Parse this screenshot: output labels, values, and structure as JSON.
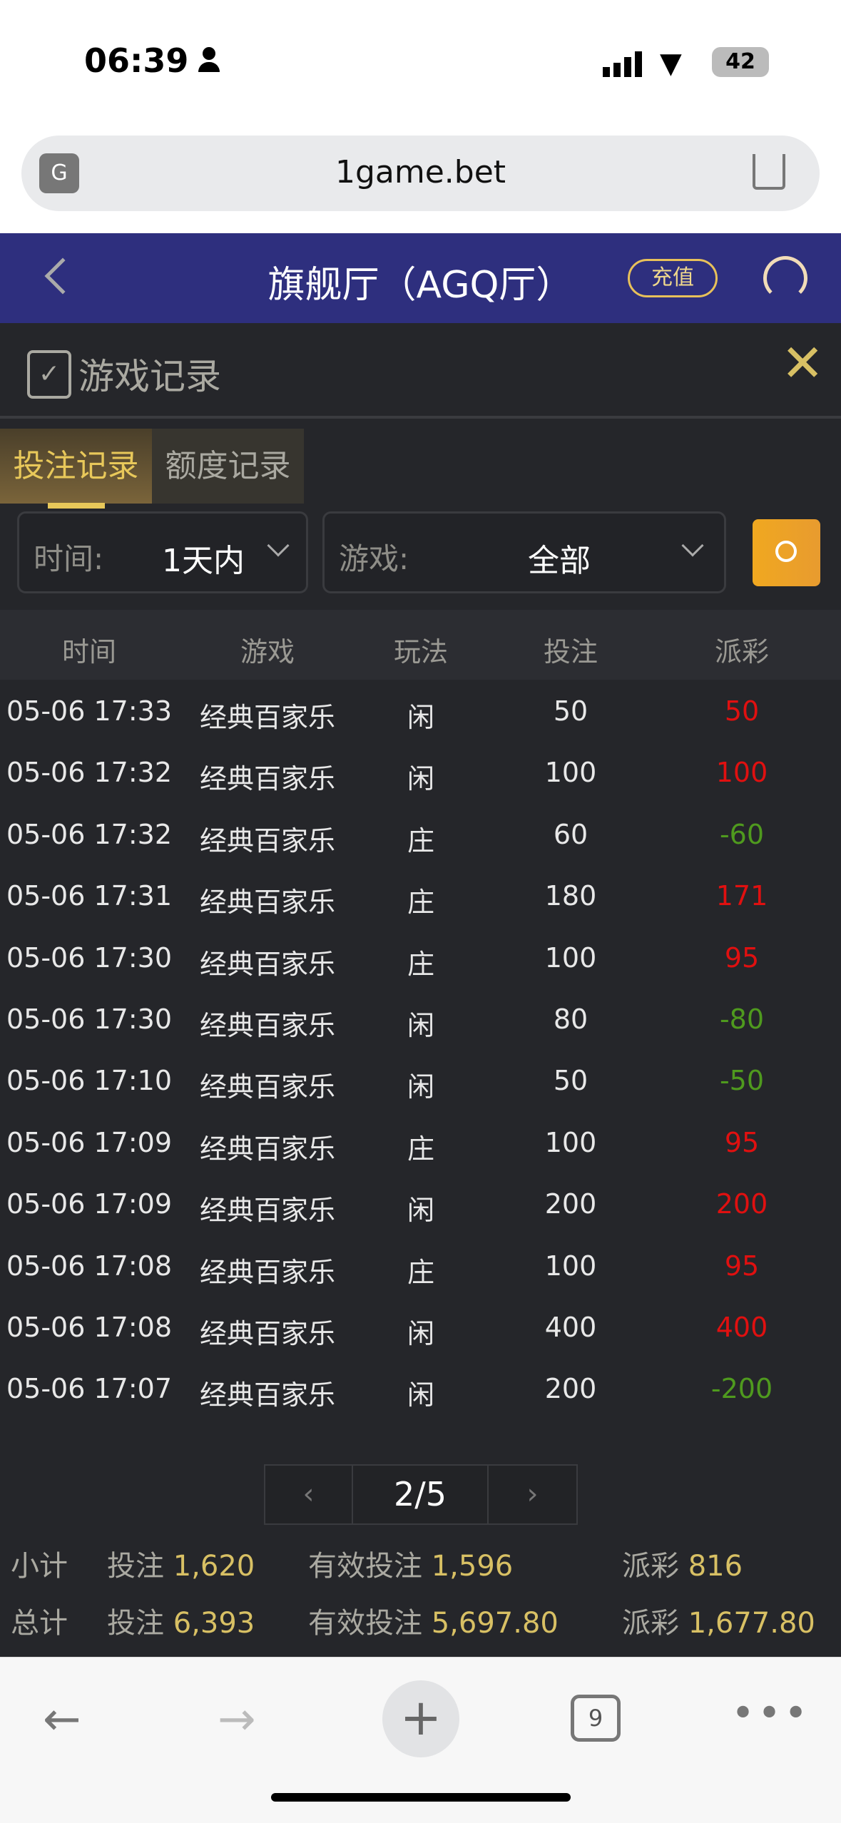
{
  "status": {
    "time": "06:39",
    "battery": "42"
  },
  "browser": {
    "url": "1game.bet"
  },
  "header": {
    "title": "旗舰厅（AGQ厅）",
    "recharge": "充值"
  },
  "panel": {
    "title": "游戏记录",
    "tabs": [
      {
        "label": "投注记录",
        "active": true
      },
      {
        "label": "额度记录",
        "active": false
      }
    ],
    "filters": {
      "time_label": "时间:",
      "time_value": "1天内",
      "game_label": "游戏:",
      "game_value": "全部"
    },
    "columns": [
      "时间",
      "游戏",
      "玩法",
      "投注",
      "派彩"
    ],
    "rows": [
      [
        "05-06 17:33",
        "经典百家乐",
        "闲",
        "50",
        "50"
      ],
      [
        "05-06 17:32",
        "经典百家乐",
        "闲",
        "100",
        "100"
      ],
      [
        "05-06 17:32",
        "经典百家乐",
        "庄",
        "60",
        "-60"
      ],
      [
        "05-06 17:31",
        "经典百家乐",
        "庄",
        "180",
        "171"
      ],
      [
        "05-06 17:30",
        "经典百家乐",
        "庄",
        "100",
        "95"
      ],
      [
        "05-06 17:30",
        "经典百家乐",
        "闲",
        "80",
        "-80"
      ],
      [
        "05-06 17:10",
        "经典百家乐",
        "闲",
        "50",
        "-50"
      ],
      [
        "05-06 17:09",
        "经典百家乐",
        "庄",
        "100",
        "95"
      ],
      [
        "05-06 17:09",
        "经典百家乐",
        "闲",
        "200",
        "200"
      ],
      [
        "05-06 17:08",
        "经典百家乐",
        "庄",
        "100",
        "95"
      ],
      [
        "05-06 17:08",
        "经典百家乐",
        "闲",
        "400",
        "400"
      ],
      [
        "05-06 17:07",
        "经典百家乐",
        "闲",
        "200",
        "-200"
      ]
    ],
    "pager": {
      "page": "2/5"
    },
    "subtotal": {
      "label": "小计",
      "bet_label": "投注",
      "bet": "1,620",
      "valid_label": "有效投注",
      "valid": "1,596",
      "payout_label": "派彩",
      "payout": "816"
    },
    "total": {
      "label": "总计",
      "bet_label": "投注",
      "bet": "6,393",
      "valid_label": "有效投注",
      "valid": "5,697.80",
      "payout_label": "派彩",
      "payout": "1,677.80"
    }
  },
  "toolbar": {
    "tabs_count": "9"
  },
  "colors": {
    "win": "#e01010",
    "loss": "#4f9a1e",
    "gold": "#d8c064",
    "header": "#2e2f7e"
  }
}
